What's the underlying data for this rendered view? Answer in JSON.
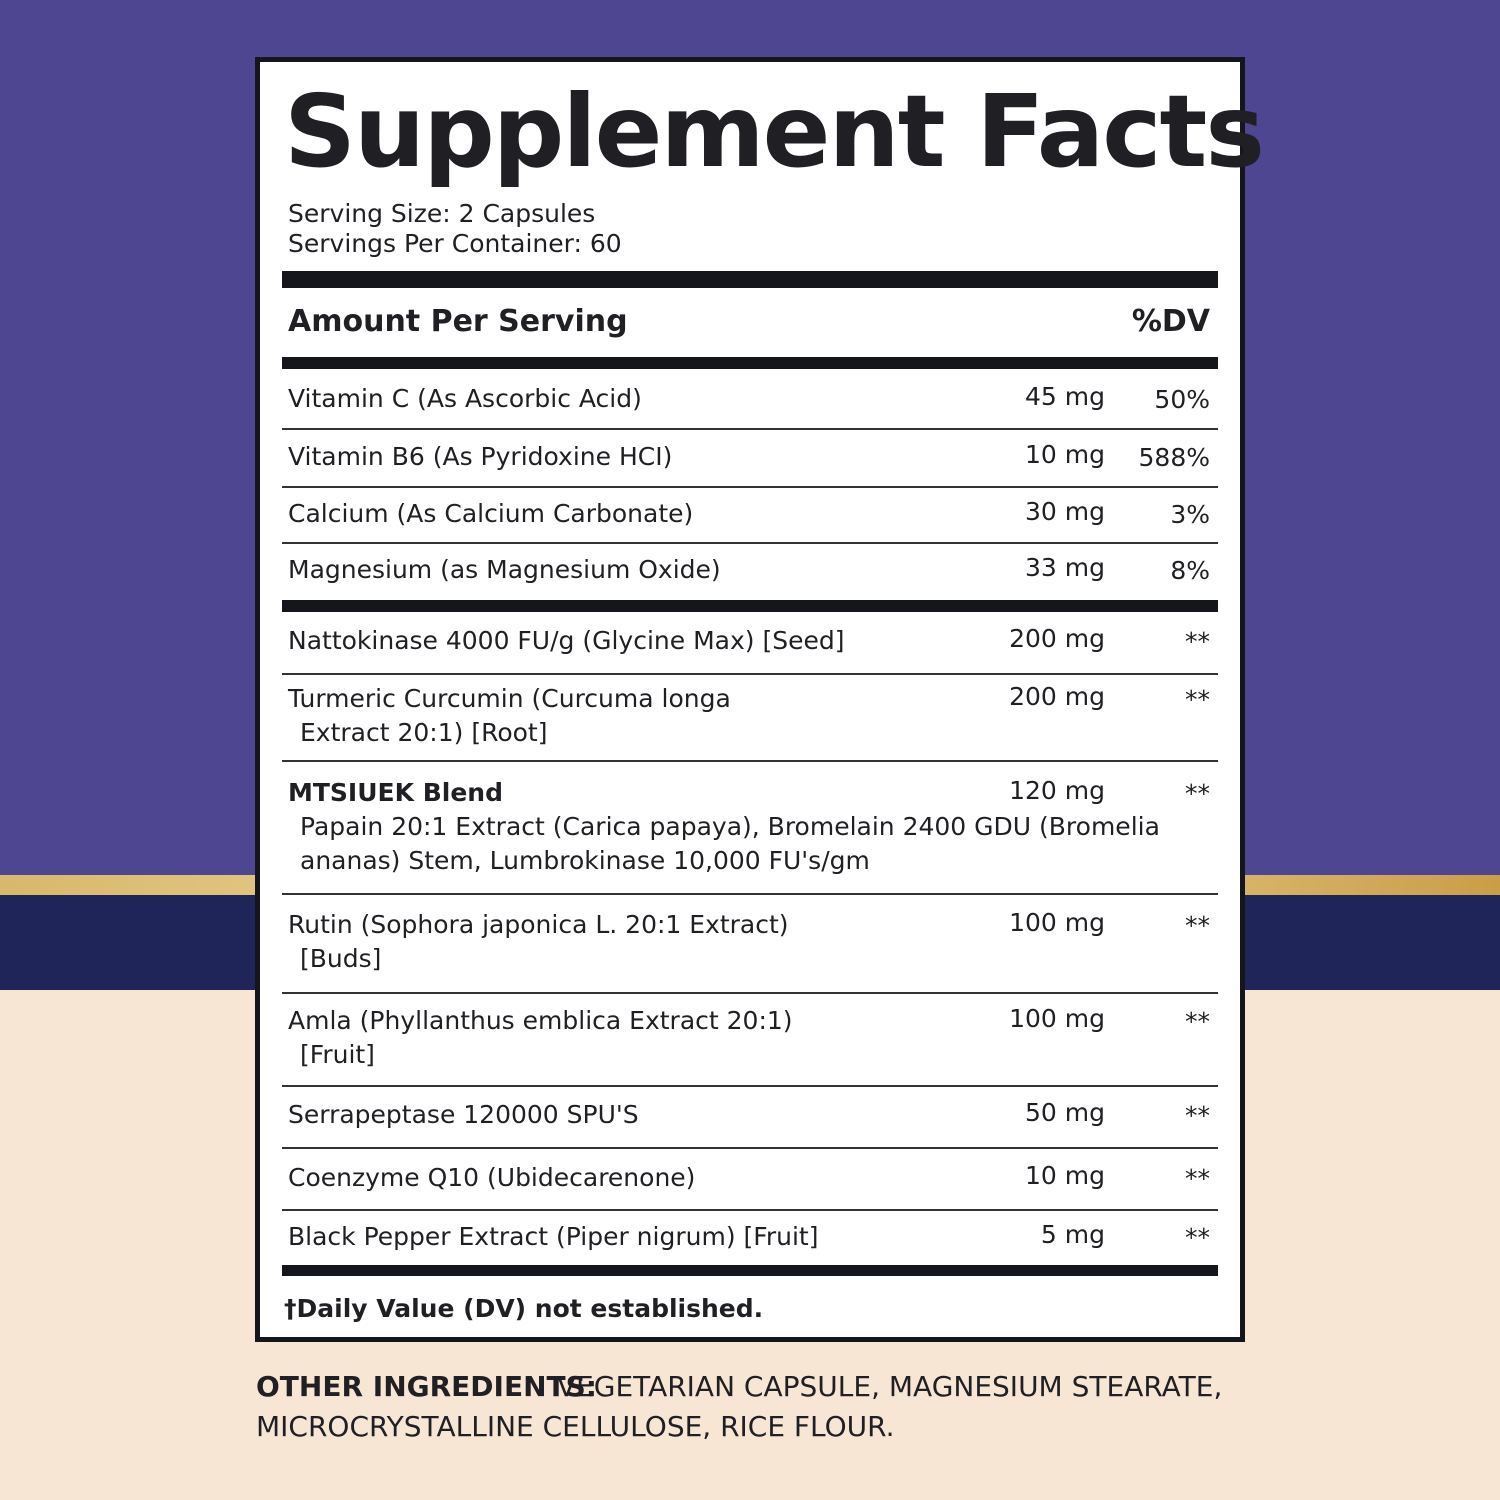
{
  "title": "Supplement Facts",
  "serving_size": "Serving Size: 2 Capsules",
  "servings_per_container": "Servings Per Container: 60",
  "header": {
    "amount": "Amount Per Serving",
    "dv": "%DV"
  },
  "vitamins": [
    {
      "name": [
        "Vitamin C (As Ascorbic Acid)"
      ],
      "amount": "45 mg",
      "dv": "50%"
    },
    {
      "name": [
        "Vitamin B6 (As Pyridoxine HCI)"
      ],
      "amount": "10 mg",
      "dv": "588%"
    },
    {
      "name": [
        "Calcium (As Calcium Carbonate)"
      ],
      "amount": "30 mg",
      "dv": "3%"
    },
    {
      "name": [
        "Magnesium (as Magnesium Oxide)"
      ],
      "amount": "33 mg",
      "dv": "8%"
    }
  ],
  "ingredients": [
    {
      "name": [
        "Nattokinase 4000 FU/g (Glycine Max) [Seed]"
      ],
      "amount": "200 mg",
      "dv": "**"
    },
    {
      "name": [
        "Turmeric Curcumin (Curcuma longa",
        "Extract 20:1) [Root]"
      ],
      "amount": "200 mg",
      "dv": "**"
    },
    {
      "name": [
        "MTSIUEK Blend",
        "Papain 20:1 Extract (Carica papaya), Bromelain 2400 GDU (Bromelia",
        "ananas) Stem, Lumbrokinase 10,000 FU's/gm"
      ],
      "amount": "120 mg",
      "dv": "**"
    },
    {
      "name": [
        "Rutin (Sophora japonica L. 20:1 Extract)",
        "[Buds]"
      ],
      "amount": "100 mg",
      "dv": "**"
    },
    {
      "name": [
        "Amla (Phyllanthus emblica Extract 20:1)",
        "[Fruit]"
      ],
      "amount": "100 mg",
      "dv": "**"
    },
    {
      "name": [
        "Serrapeptase 120000 SPU'S"
      ],
      "amount": "50 mg",
      "dv": "**"
    },
    {
      "name": [
        "Coenzyme Q10 (Ubidecarenone)"
      ],
      "amount": "10 mg",
      "dv": "**"
    },
    {
      "name": [
        "Black Pepper Extract (Piper nigrum) [Fruit]"
      ],
      "amount": "5 mg",
      "dv": "**"
    }
  ],
  "footnote": "†Daily Value (DV) not established.",
  "other_ingredients": {
    "label": "OTHER INGREDIENTS:",
    "lines": [
      " VEGETARIAN CAPSULE, MAGNESIUM STEARATE,",
      "MICROCRYSTALLINE CELLULOSE, RICE FLOUR."
    ]
  }
}
